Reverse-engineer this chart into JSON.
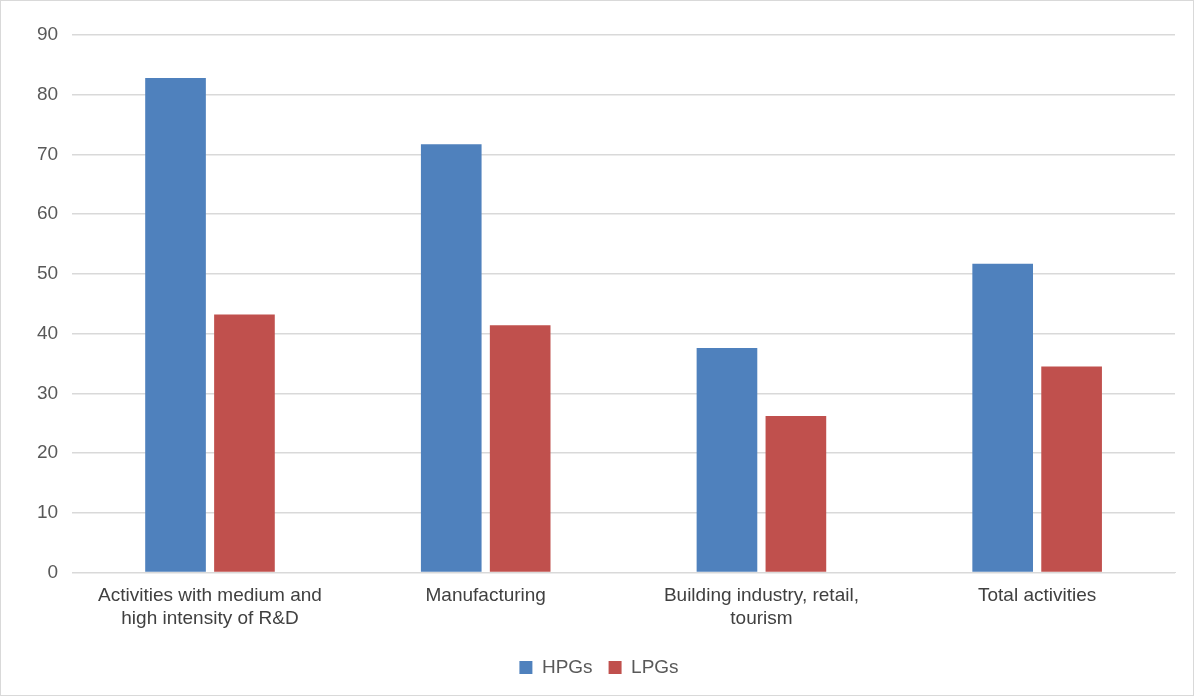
{
  "chart_data": {
    "type": "bar",
    "categories": [
      "Activities with medium and high intensity of R&D",
      "Manufacturing",
      "Building industry, retail, tourism",
      "Total activities"
    ],
    "series": [
      {
        "name": "HPGs",
        "color": "#4f81bd",
        "values": [
          82.8,
          71.7,
          37.6,
          51.7
        ]
      },
      {
        "name": "LPGs",
        "color": "#c0504d",
        "values": [
          43.2,
          41.4,
          26.2,
          34.5
        ]
      }
    ],
    "ylim": [
      0,
      90
    ],
    "yticks": [
      0,
      10,
      20,
      30,
      40,
      50,
      60,
      70,
      80,
      90
    ],
    "grid": "y",
    "legend": "bottom"
  }
}
